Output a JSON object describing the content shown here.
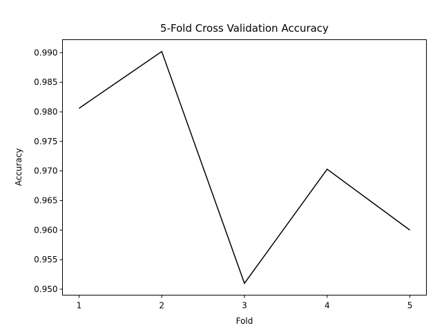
{
  "chart_data": {
    "type": "line",
    "title": "5-Fold Cross Validation Accuracy",
    "xlabel": "Fold",
    "ylabel": "Accuracy",
    "x": [
      1,
      2,
      3,
      4,
      5
    ],
    "series": [
      {
        "values": [
          0.9806,
          0.9902,
          0.951,
          0.9703,
          0.96
        ],
        "color": "#000000"
      }
    ],
    "xticks": [
      1,
      2,
      3,
      4,
      5
    ],
    "xtick_labels": [
      "1",
      "2",
      "3",
      "4",
      "5"
    ],
    "yticks": [
      0.95,
      0.955,
      0.96,
      0.965,
      0.97,
      0.975,
      0.98,
      0.985,
      0.99
    ],
    "ytick_labels": [
      "0.950",
      "0.955",
      "0.960",
      "0.965",
      "0.970",
      "0.975",
      "0.980",
      "0.985",
      "0.990"
    ],
    "xlim": [
      0.8,
      5.2
    ],
    "ylim": [
      0.949,
      0.9922
    ],
    "grid": false,
    "legend": false
  }
}
